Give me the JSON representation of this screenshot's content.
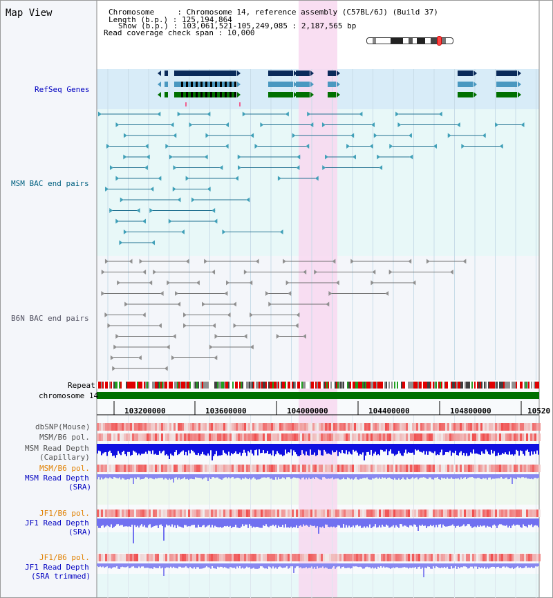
{
  "title": "Map View",
  "info": {
    "line1": "Chromosome     : Chromosome 14, reference assembly (C57BL/6J) (Build 37)",
    "line2": "Length (b.p.) : 125,194,864",
    "line3": "Show (b.p.) : 103,061,521-105,249,085 : 2,187,565 bp",
    "line4": "Read coverage check span : 10,000"
  },
  "tracks": {
    "refseq": "RefSeq Genes",
    "msm_bac": "MSM BAC end pairs",
    "b6n_bac": "B6N BAC end pairs",
    "repeat": "Repeat",
    "chromosome": "chromosome 14",
    "dbsnp": "dbSNP(Mouse)",
    "msm_b6_pol": "MSM/B6 pol.",
    "msm_depth_cap_1": "MSM Read Depth",
    "msm_depth_cap_2": "(Capillary)",
    "msm_b6_pol_sra": "MSM/B6 pol.",
    "msm_depth_sra_1": "MSM Read Depth",
    "msm_depth_sra_2": "(SRA)",
    "jf1_pol": "JF1/B6 pol.",
    "jf1_depth_1": "JF1 Read Depth",
    "jf1_depth_2": "(SRA)",
    "jf1_pol_trim": "JF1/B6 pol.",
    "jf1_trim_1": "JF1 Read Depth",
    "jf1_trim_2": "(SRA trimmed)"
  },
  "axis": {
    "ticks": [
      "103200000",
      "103600000",
      "104000000",
      "104400000",
      "104800000",
      "10520"
    ]
  },
  "colors": {
    "refseq_bg": "#d8ecf8",
    "msm_bg": "#e8f8f8",
    "b6n_bg": "#f4f6fa",
    "highlight": "#f8d8f0",
    "refseq_label": "#0000c0",
    "msm_label": "#006080",
    "b6n_label": "#505060",
    "gene_navy": "#0a2a5a",
    "gene_teal": "#4a98c0",
    "gene_green": "#007000",
    "pol_orange": "#e08000",
    "depth_blue": "#0000e0",
    "depth_light": "#8080f0",
    "chrom_green": "#007000"
  }
}
